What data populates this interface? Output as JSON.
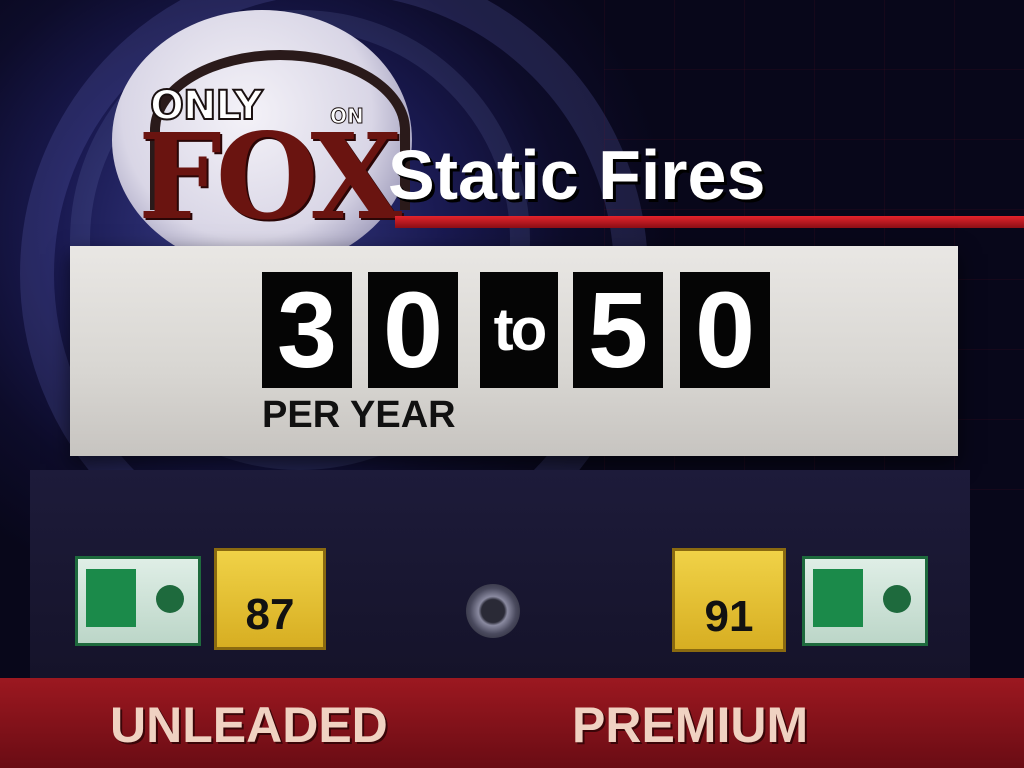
{
  "logo": {
    "top_text": "ONLY",
    "small_text": "ON",
    "brand_text": "FOX"
  },
  "headline": {
    "title": "Static Fires"
  },
  "counter": {
    "digits_left": [
      "3",
      "0"
    ],
    "connector": "to",
    "digits_right": [
      "5",
      "0"
    ],
    "caption": "PER YEAR"
  },
  "pump": {
    "octane_left": "87",
    "octane_right": "91",
    "grade_left": "UNLEADED",
    "grade_right": "PREMIUM"
  },
  "colors": {
    "accent_red": "#e3232b",
    "octane_yellow": "#f0d247",
    "panel": "#e9e7e4"
  }
}
